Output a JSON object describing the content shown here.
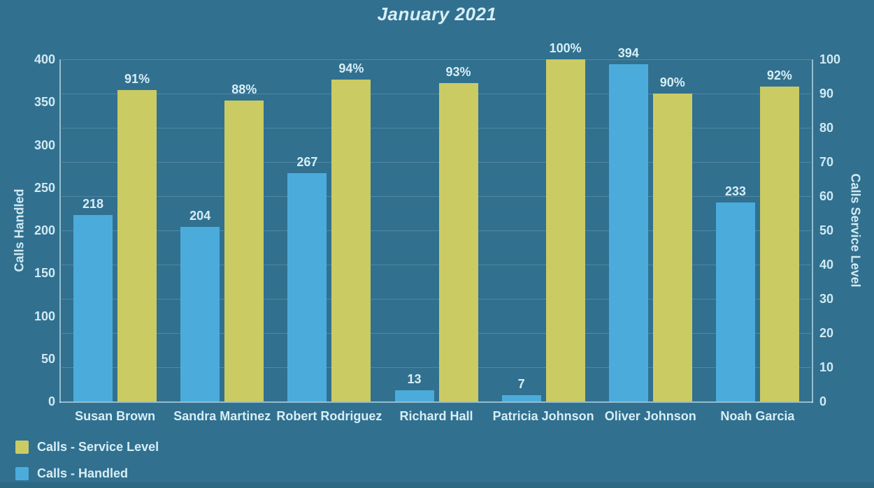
{
  "colors": {
    "background": "#31708F",
    "bottom_strip": "#2D6883",
    "text": "#D7EEF6",
    "series_handled": "#4BACDC",
    "series_service_level": "#CBCB63"
  },
  "chart_data": {
    "type": "bar",
    "title": "January 2021",
    "categories": [
      "Susan Brown",
      "Sandra Martinez",
      "Robert Rodriguez",
      "Richard Hall",
      "Patricia Johnson",
      "Oliver Johnson",
      "Noah Garcia"
    ],
    "series": [
      {
        "name": "Calls - Handled",
        "axis": "left",
        "color": "#4BACDC",
        "values": [
          218,
          204,
          267,
          13,
          7,
          394,
          233
        ],
        "labels": [
          "218",
          "204",
          "267",
          "13",
          "7",
          "394",
          "233"
        ]
      },
      {
        "name": "Calls - Service Level",
        "axis": "right",
        "color": "#CBCB63",
        "values": [
          91,
          88,
          94,
          93,
          100,
          90,
          92
        ],
        "labels": [
          "91%",
          "88%",
          "94%",
          "93%",
          "100%",
          "90%",
          "92%"
        ]
      }
    ],
    "left_axis": {
      "label": "Calls Handled",
      "min": 0,
      "max": 400,
      "tick_step": 50,
      "ticks": [
        "0",
        "50",
        "100",
        "150",
        "200",
        "250",
        "300",
        "350",
        "400"
      ]
    },
    "right_axis": {
      "label": "Calls Service Level",
      "min": 0,
      "max": 100,
      "tick_step": 10,
      "ticks": [
        "0",
        "10",
        "20",
        "30",
        "40",
        "50",
        "60",
        "70",
        "80",
        "90",
        "100"
      ]
    },
    "grid": "horizontal",
    "legend": {
      "position": "bottom-left",
      "items": [
        {
          "label": "Calls - Service Level",
          "color": "#CBCB63"
        },
        {
          "label": "Calls - Handled",
          "color": "#4BACDC"
        }
      ]
    }
  }
}
